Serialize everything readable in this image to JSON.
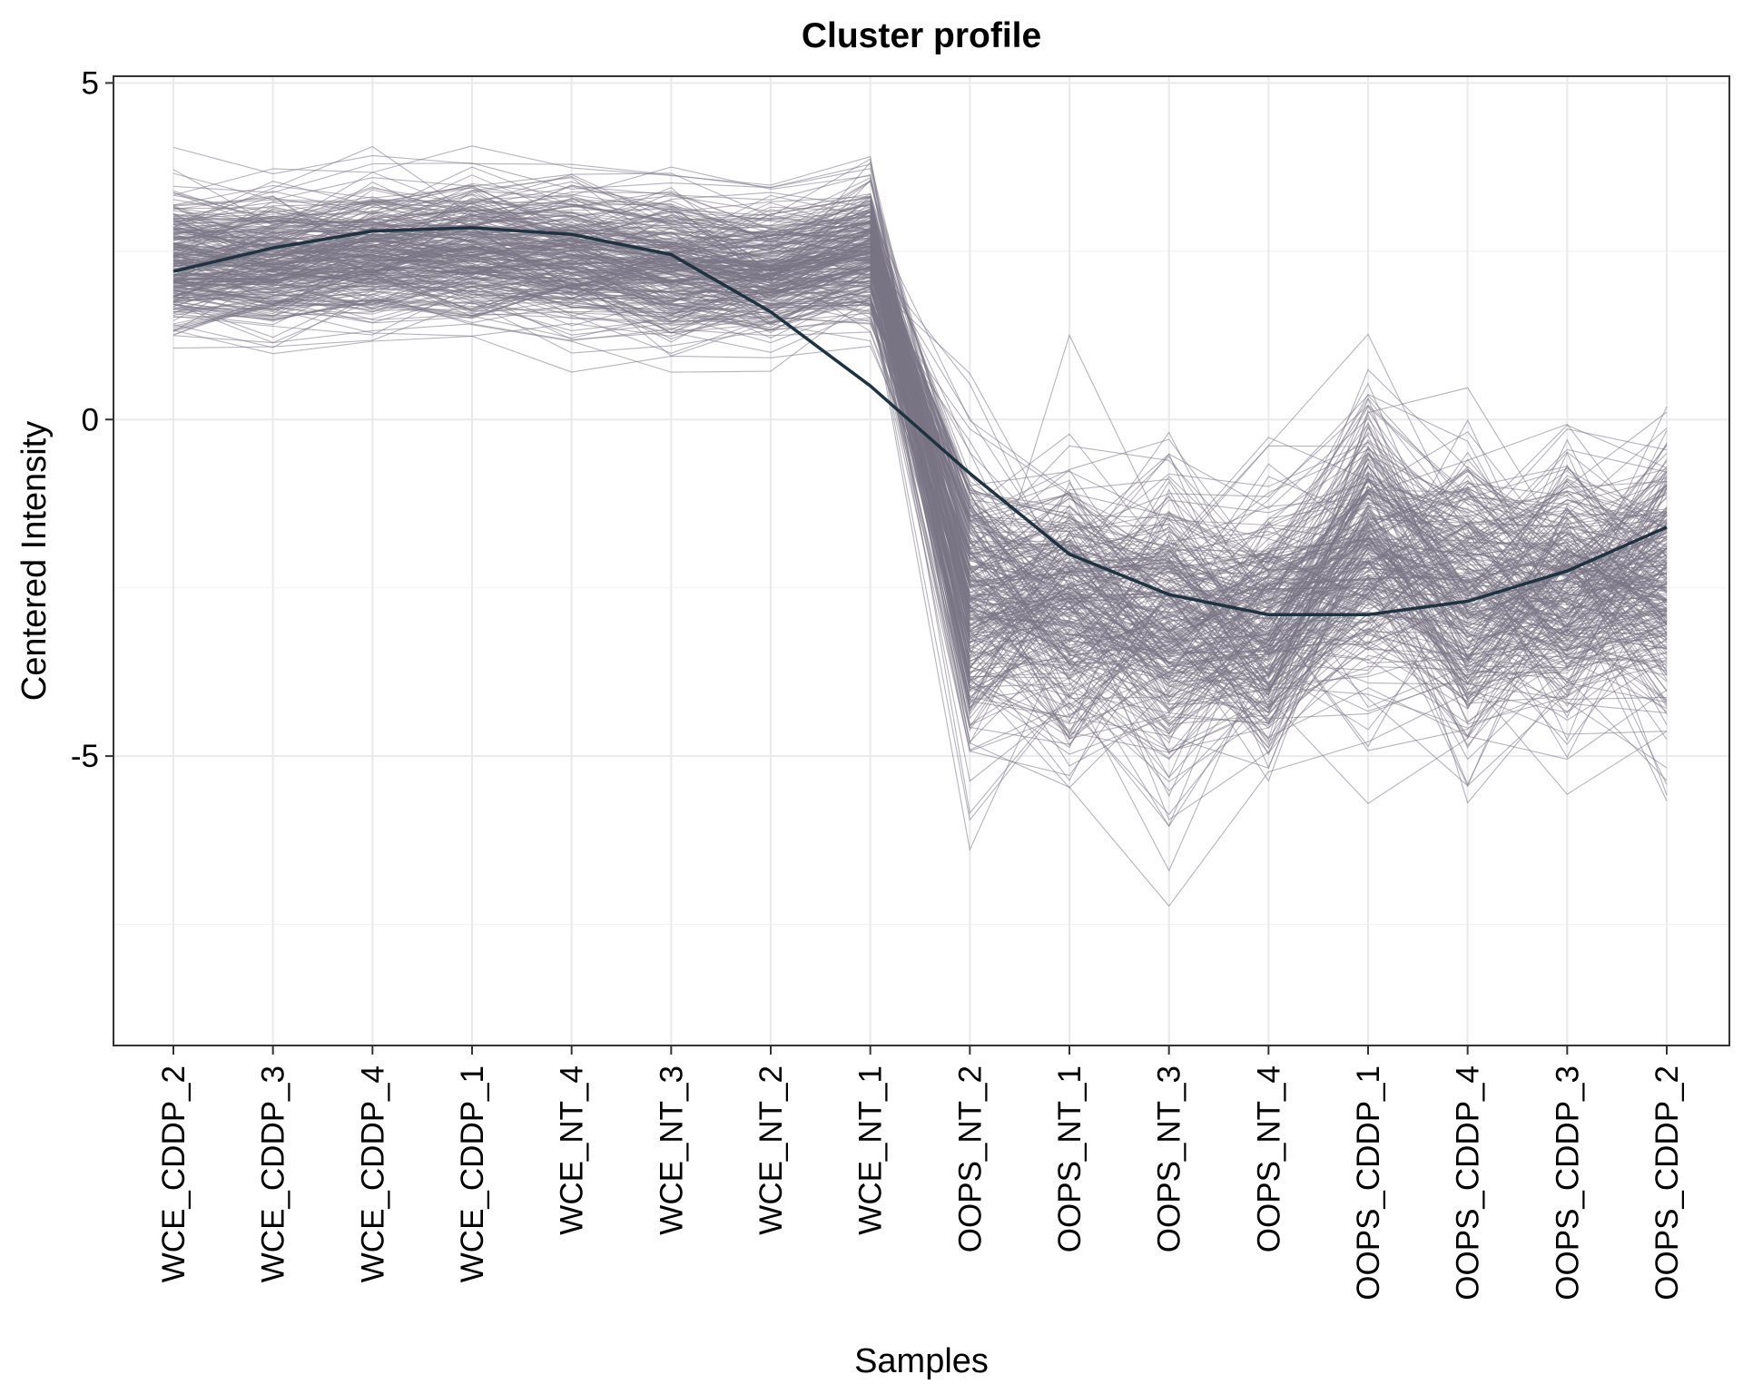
{
  "chart_data": {
    "type": "line",
    "title": "Cluster profile",
    "xlabel": "Samples",
    "ylabel": "Centered Intensity",
    "categories": [
      "WCE_CDDP_2",
      "WCE_CDDP_3",
      "WCE_CDDP_4",
      "WCE_CDDP_1",
      "WCE_NT_4",
      "WCE_NT_3",
      "WCE_NT_2",
      "WCE_NT_1",
      "OOPS_NT_2",
      "OOPS_NT_1",
      "OOPS_NT_3",
      "OOPS_NT_4",
      "OOPS_CDDP_1",
      "OOPS_CDDP_4",
      "OOPS_CDDP_3",
      "OOPS_CDDP_2"
    ],
    "yticks": [
      "5",
      "0",
      "-5"
    ],
    "ylim": [
      -9.3,
      5.1
    ],
    "grid": true,
    "legend": "none",
    "summary_series": {
      "values": [
        2.2,
        2.55,
        2.8,
        2.85,
        2.75,
        2.45,
        1.6,
        0.5,
        -0.8,
        -2.0,
        -2.6,
        -2.9,
        -2.9,
        -2.7,
        -2.25,
        -1.6
      ],
      "color": "#1e3240"
    },
    "member_series": {
      "count": 300,
      "color": "#7a7585",
      "mean_profile": [
        2.3,
        2.35,
        2.45,
        2.5,
        2.4,
        2.3,
        2.2,
        2.5,
        -2.6,
        -2.75,
        -2.95,
        -3.1,
        -2.0,
        -2.65,
        -2.55,
        -2.45
      ],
      "spread": [
        0.55,
        0.55,
        0.55,
        0.55,
        0.6,
        0.6,
        0.6,
        0.55,
        1.05,
        1.05,
        1.05,
        1.05,
        1.05,
        1.05,
        1.05,
        1.0
      ]
    }
  }
}
